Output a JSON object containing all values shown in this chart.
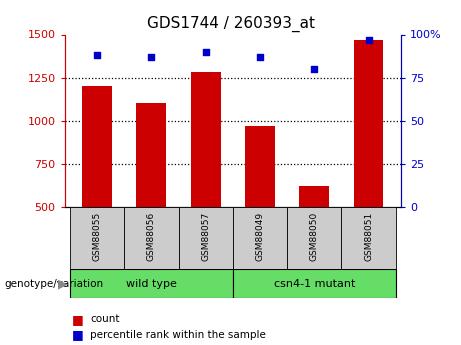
{
  "title": "GDS1744 / 260393_at",
  "categories": [
    "GSM88055",
    "GSM88056",
    "GSM88057",
    "GSM88049",
    "GSM88050",
    "GSM88051"
  ],
  "counts": [
    1200,
    1100,
    1280,
    970,
    620,
    1470
  ],
  "percentiles": [
    88,
    87,
    90,
    87,
    80,
    97
  ],
  "bar_color": "#cc0000",
  "dot_color": "#0000cc",
  "ylim_left": [
    500,
    1500
  ],
  "ylim_right": [
    0,
    100
  ],
  "yticks_left": [
    500,
    750,
    1000,
    1250,
    1500
  ],
  "yticks_right": [
    0,
    25,
    50,
    75,
    100
  ],
  "grid_lines": [
    750,
    1000,
    1250
  ],
  "group_label": "genotype/variation",
  "wt_label": "wild type",
  "mut_label": "csn4-1 mutant",
  "legend_count_label": "count",
  "legend_pct_label": "percentile rank within the sample",
  "title_fontsize": 11,
  "axis_color_left": "#cc0000",
  "axis_color_right": "#0000cc",
  "bar_width": 0.55,
  "gray_box_color": "#cccccc",
  "green_box_color": "#66dd66"
}
